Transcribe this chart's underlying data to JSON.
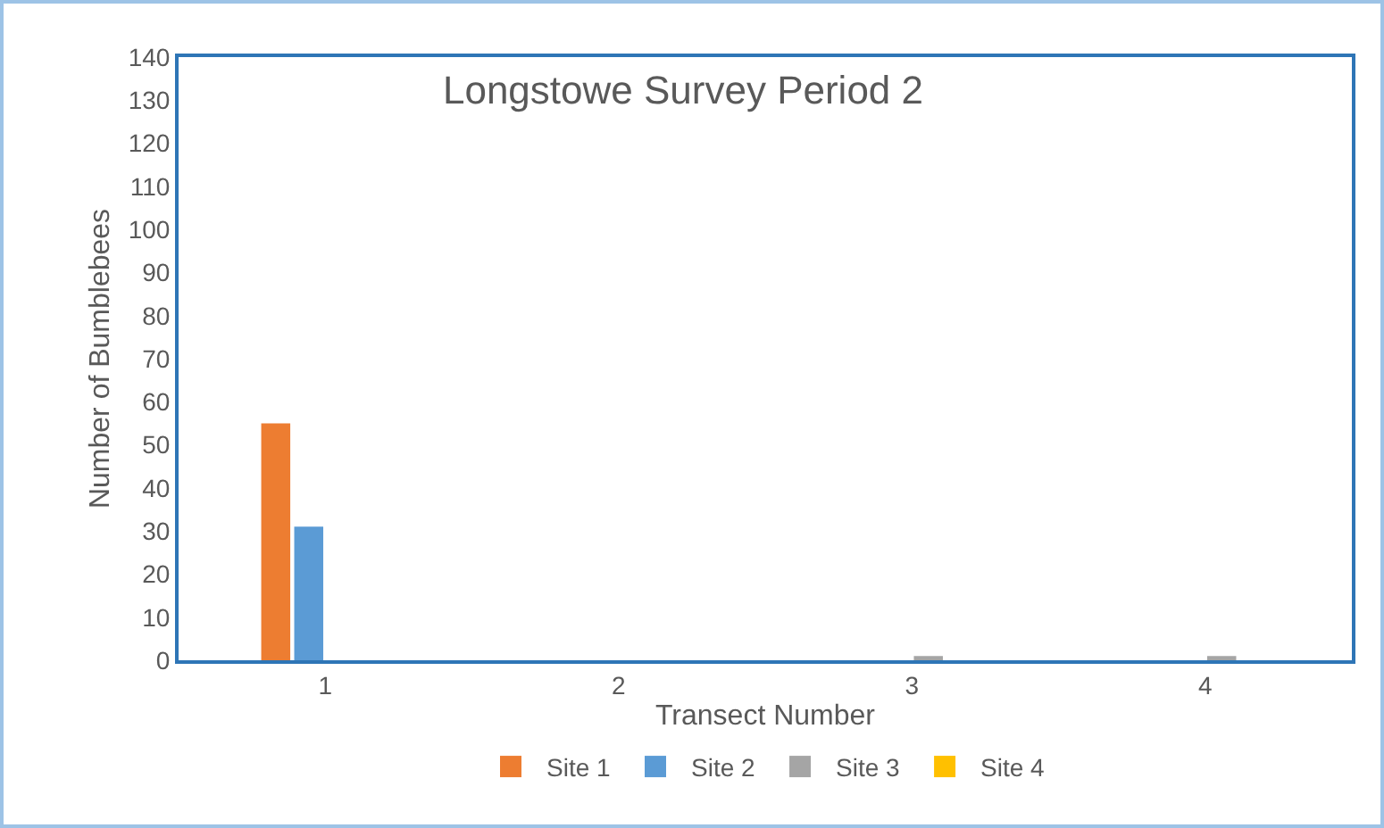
{
  "chart_data": {
    "type": "bar",
    "title": "Longstowe Survey Period 2",
    "xlabel": "Transect Number",
    "ylabel": "Number of Bumblebees",
    "categories": [
      "1",
      "2",
      "3",
      "4"
    ],
    "series": [
      {
        "name": "Site 1",
        "color": "#ed7d31",
        "values": [
          55,
          0,
          0,
          0
        ]
      },
      {
        "name": "Site 2",
        "color": "#5b9bd5",
        "values": [
          31,
          0,
          0,
          0
        ]
      },
      {
        "name": "Site 3",
        "color": "#a5a5a5",
        "values": [
          0,
          0,
          1,
          1
        ]
      },
      {
        "name": "Site 4",
        "color": "#ffc000",
        "values": [
          0,
          0,
          0,
          0
        ]
      }
    ],
    "ylim": [
      0,
      140
    ],
    "yticks": [
      0,
      10,
      20,
      30,
      40,
      50,
      60,
      70,
      80,
      90,
      100,
      110,
      120,
      130,
      140
    ],
    "grid": false,
    "legend": "bottom"
  }
}
